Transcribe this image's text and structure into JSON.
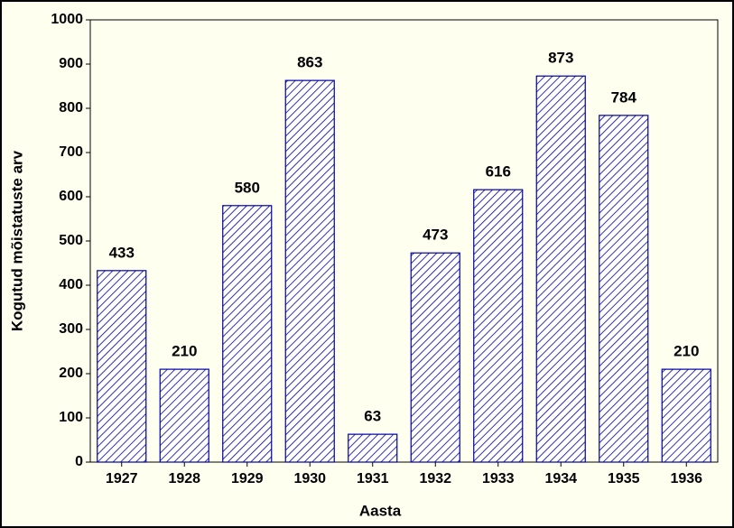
{
  "chart_data": {
    "type": "bar",
    "x_label": "Aasta",
    "y_label": "Kogutud mõistatuste arv",
    "categories": [
      "1927",
      "1928",
      "1929",
      "1930",
      "1931",
      "1932",
      "1933",
      "1934",
      "1935",
      "1936"
    ],
    "values": [
      433,
      210,
      580,
      863,
      63,
      473,
      616,
      873,
      784,
      210
    ],
    "color": "#0000a0",
    "ylim": [
      0,
      1000
    ],
    "yticks": [
      0,
      100,
      200,
      300,
      400,
      500,
      600,
      700,
      800,
      900,
      1000
    ],
    "grid": false,
    "value_labels_shown": true
  }
}
